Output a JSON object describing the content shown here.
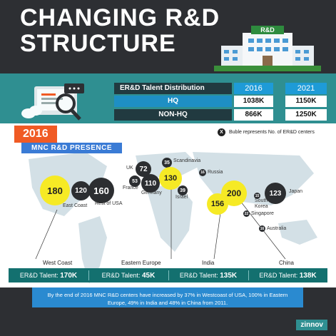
{
  "header": {
    "title_line1": "CHANGING R&D",
    "title_line2": "STRUCTURE",
    "building_sign": "R&D"
  },
  "talent_table": {
    "label": "ER&D Talent Distribution",
    "years": [
      "2016",
      "2021"
    ],
    "rows": [
      {
        "label": "HQ",
        "values": [
          "1038K",
          "1150K"
        ]
      },
      {
        "label": "NON-HQ",
        "values": [
          "866K",
          "1250K"
        ]
      }
    ]
  },
  "year_tag": "2016",
  "presence_title": "MNC R&D PRESENCE",
  "legend": {
    "icon": "X",
    "text": "Buble represents No. of ER&D centers"
  },
  "chart_data": {
    "type": "bubble-map",
    "title": "MNC R&D PRESENCE",
    "points": [
      {
        "location": "West Coast",
        "centers": 180,
        "highlight": true
      },
      {
        "location": "East Coast",
        "centers": 120,
        "highlight": false
      },
      {
        "location": "Rest of USA",
        "centers": 160,
        "highlight": false
      },
      {
        "location": "UK",
        "centers": 72,
        "highlight": false
      },
      {
        "location": "France",
        "centers": 53,
        "highlight": false
      },
      {
        "location": "Germany",
        "centers": 110,
        "highlight": false
      },
      {
        "location": "Scandinavia",
        "centers": 35,
        "highlight": false
      },
      {
        "location": "Eastern Europe",
        "centers": 130,
        "highlight": true
      },
      {
        "location": "Russia",
        "centers": 16,
        "highlight": false
      },
      {
        "location": "Israel",
        "centers": 39,
        "highlight": false
      },
      {
        "location": "India",
        "centers": 156,
        "highlight": true
      },
      {
        "location": "China",
        "centers": 200,
        "highlight": true
      },
      {
        "location": "Japan",
        "centers": 123,
        "highlight": false
      },
      {
        "location": "South Korea",
        "centers": 15,
        "highlight": false
      },
      {
        "location": "Singapore",
        "centers": 22,
        "highlight": false
      },
      {
        "location": "Australia",
        "centers": 16,
        "highlight": false
      }
    ],
    "labels": {
      "east_coast": "East Coast",
      "rest_usa": "Rest of USA",
      "uk": "UK",
      "france": "France",
      "germany": "Germany",
      "scandinavia": "Scandinavia",
      "russia": "Russia",
      "israel": "Israel",
      "south_korea": "South\nKorea",
      "singapore": "Singapore",
      "japan": "Japan",
      "australia": "Australia"
    }
  },
  "regions": [
    {
      "name": "West Coast",
      "talent_label": "ER&D Talent:",
      "talent_value": "170K"
    },
    {
      "name": "Eastern Europe",
      "talent_label": "ER&D Talent:",
      "talent_value": "45K"
    },
    {
      "name": "India",
      "talent_label": "ER&D Talent:",
      "talent_value": "135K"
    },
    {
      "name": "China",
      "talent_label": "ER&D Talent:",
      "talent_value": "138K"
    }
  ],
  "summary": "By the end of 2016 MNC R&D centers have increased by 37% in Westcoast of USA, 100% in Eastern Europe, 49% in India and 48% in China from 2011.",
  "brand": "zinnov",
  "colors": {
    "highlight": "#f6ea25",
    "dark": "#2c2e31",
    "accent": "#f05a24",
    "teal": "#2f8f91"
  }
}
